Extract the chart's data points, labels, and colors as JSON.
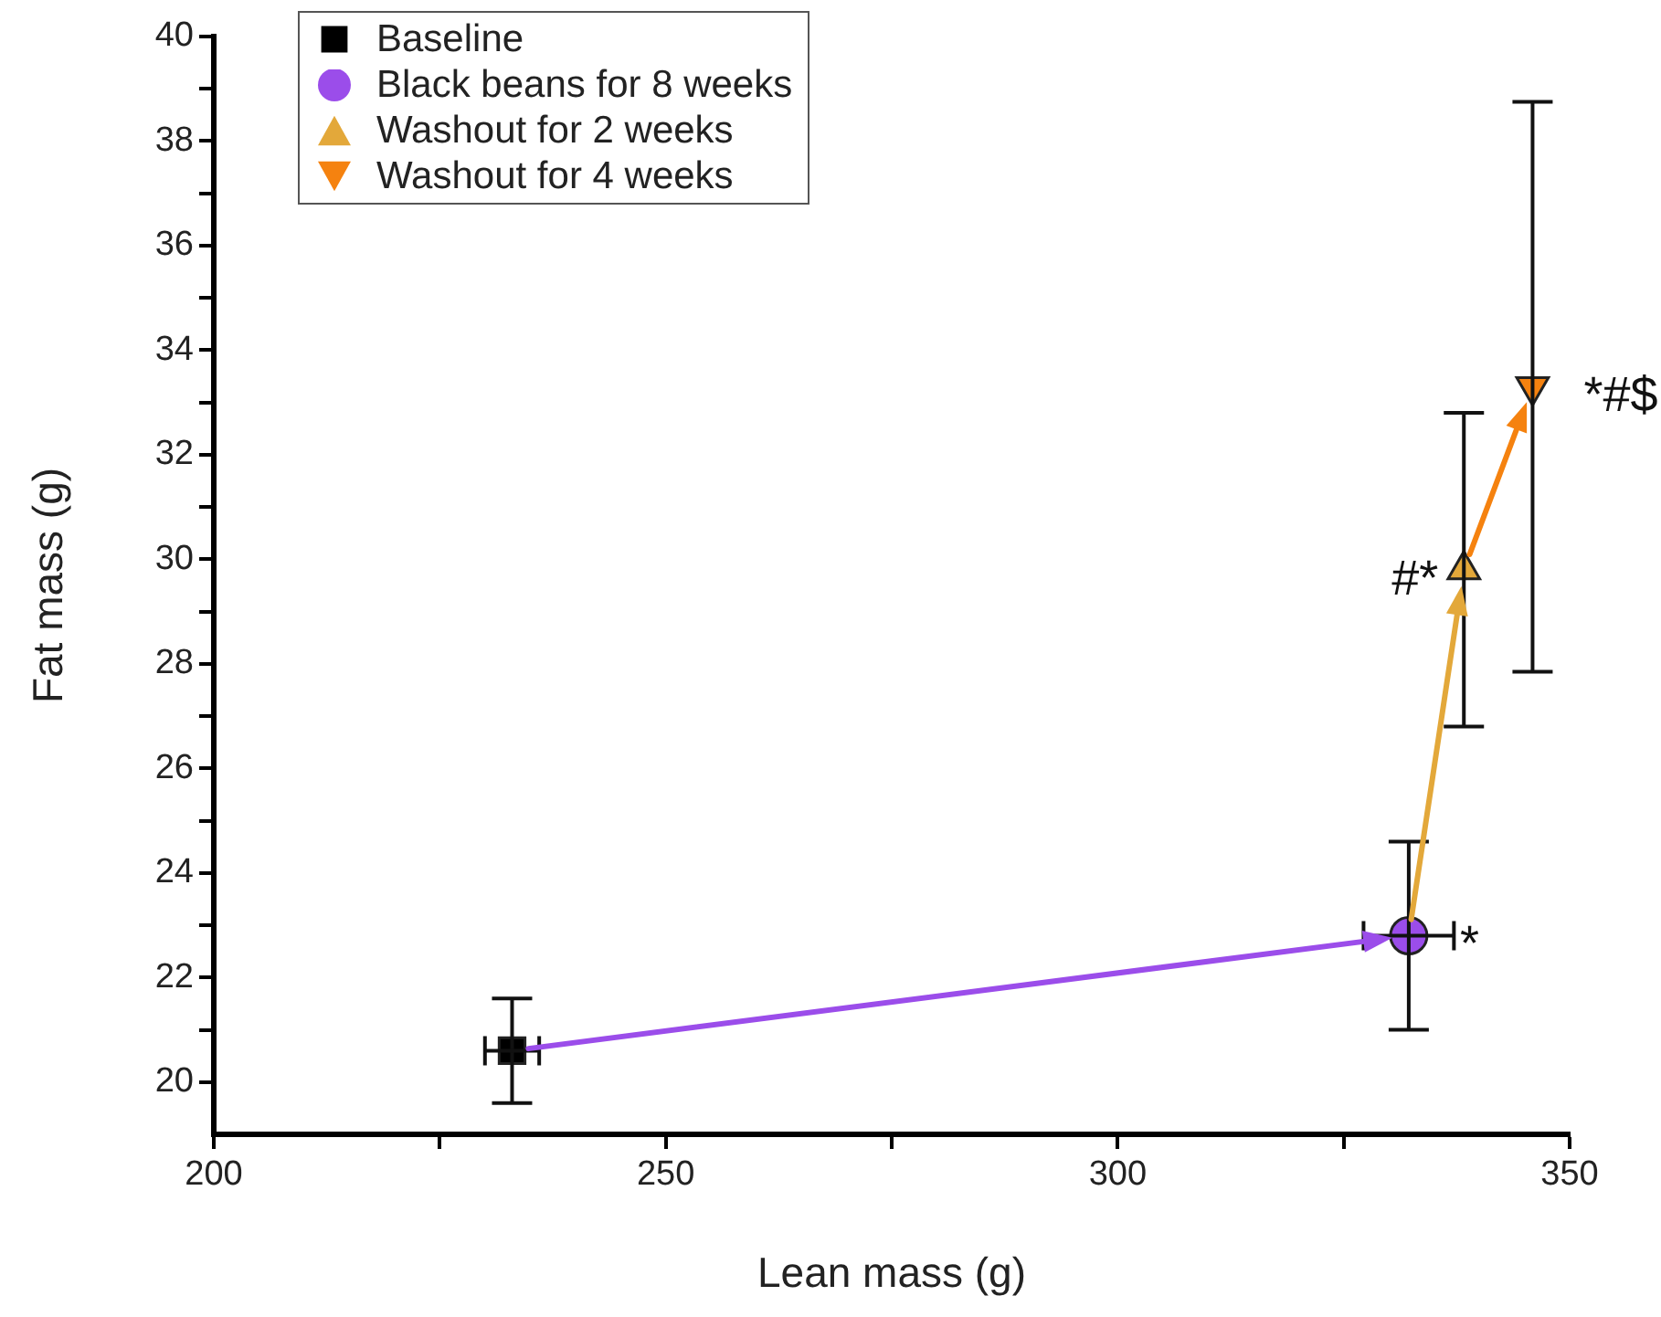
{
  "chart_data": {
    "type": "scatter",
    "xlabel": "Lean mass (g)",
    "ylabel": "Fat mass (g)",
    "xlim": [
      200,
      350
    ],
    "xticks": [
      200,
      {
        "value": 225,
        "label": null
      },
      250,
      {
        "value": 275,
        "label": null
      },
      300,
      {
        "value": 325,
        "label": null
      },
      350
    ],
    "ylim": [
      19,
      40
    ],
    "yticks": [
      20,
      {
        "value": 21,
        "label": null
      },
      22,
      {
        "value": 23,
        "label": null
      },
      24,
      {
        "value": 25,
        "label": null
      },
      26,
      {
        "value": 27,
        "label": null
      },
      28,
      {
        "value": 29,
        "label": null
      },
      30,
      {
        "value": 31,
        "label": null
      },
      32,
      {
        "value": 33,
        "label": null
      },
      34,
      {
        "value": 35,
        "label": null
      },
      36,
      {
        "value": 37,
        "label": null
      },
      38,
      {
        "value": 39,
        "label": null
      },
      40
    ],
    "grid": false,
    "legend": "top left",
    "series": [
      {
        "name": "Baseline",
        "x": [
          233
        ],
        "values": [
          20.6
        ],
        "color": "#000000",
        "marker": "square",
        "errors": [
          1.0
        ],
        "xerrors": [
          3
        ]
      },
      {
        "name": "Black beans for 8 weeks",
        "x": [
          332.2
        ],
        "values": [
          22.8
        ],
        "color": "#9b4dea",
        "marker": "circle",
        "errors": [
          1.8
        ],
        "xerrors": [
          5
        ]
      },
      {
        "name": "Washout for 2 weeks",
        "x": [
          338.3
        ],
        "values": [
          29.8
        ],
        "color": "#e3a83a",
        "marker": "triangle",
        "errors": [
          3
        ]
      },
      {
        "name": "Washout for 4 weeks",
        "x": [
          345.9
        ],
        "values": [
          33.3
        ],
        "color": "#f5820f",
        "marker": "triangle-down",
        "errors": [
          5.45
        ]
      }
    ],
    "annotations": [
      {
        "text": "*",
        "x": 332.2,
        "y": 22.8
      },
      {
        "text": "#*",
        "x": 338.3,
        "y": 29.8
      },
      {
        "text": "*#$",
        "x": 345.9,
        "y": 33.3
      }
    ]
  }
}
